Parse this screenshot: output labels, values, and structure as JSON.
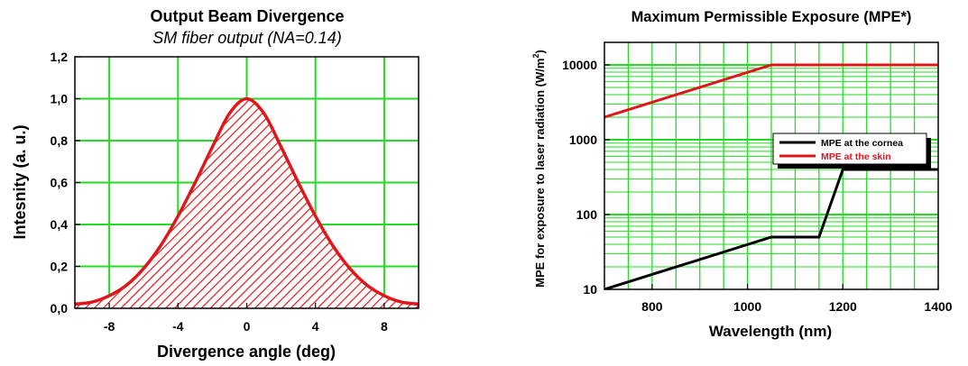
{
  "chart_data": [
    {
      "type": "area",
      "title": "Output Beam Divergence",
      "subtitle": "SM fiber output (NA=0.14)",
      "xlabel": "Divergence angle (deg)",
      "ylabel": "Intesnity (a. u.)",
      "xlim": [
        -10,
        10
      ],
      "ylim": [
        0,
        1.2
      ],
      "x_ticks": [
        "-8",
        "-4",
        "0",
        "4",
        "8"
      ],
      "x_tick_values": [
        -8,
        -4,
        0,
        4,
        8
      ],
      "y_ticks": [
        "0,0",
        "0,2",
        "0,4",
        "0,6",
        "0,8",
        "1,0",
        "1,2"
      ],
      "y_tick_values": [
        0,
        0.2,
        0.4,
        0.6,
        0.8,
        1.0,
        1.2
      ],
      "grid": true,
      "fill": "hatched",
      "series": [
        {
          "x": [
            -10,
            -9,
            -8,
            -7,
            -6,
            -5,
            -4,
            -3,
            -2,
            -1,
            0,
            1,
            2,
            3,
            4,
            5,
            6,
            7,
            8,
            9,
            10
          ],
          "values": [
            0.02,
            0.03,
            0.06,
            0.11,
            0.19,
            0.3,
            0.44,
            0.6,
            0.77,
            0.93,
            1.0,
            0.93,
            0.77,
            0.6,
            0.44,
            0.3,
            0.19,
            0.11,
            0.06,
            0.03,
            0.02
          ],
          "color": "#e0161b"
        }
      ],
      "colors": {
        "grid": "#22dd22",
        "line": "#e0161b",
        "hatch": "#e0161b"
      }
    },
    {
      "type": "line",
      "title": "Maximum Permissible Exposure (MPE*)",
      "xlabel": "Wavelength (nm)",
      "ylabel": "MPE for exposure to laser radiation (W/m",
      "ylabel_sup": "2",
      "ylabel_close": ")",
      "xlim": [
        700,
        1400
      ],
      "ylim": [
        10,
        20000
      ],
      "y_scale": "log",
      "x_ticks": [
        "800",
        "1000",
        "1200",
        "1400"
      ],
      "x_tick_values": [
        800,
        1000,
        1200,
        1400
      ],
      "y_ticks": [
        "10",
        "100",
        "1000",
        "10000"
      ],
      "y_tick_values": [
        10,
        100,
        1000,
        10000
      ],
      "grid": true,
      "legend_position": "right",
      "series": [
        {
          "name": "MPE at the cornea",
          "x": [
            700,
            1050,
            1150,
            1200,
            1400
          ],
          "values": [
            10,
            50,
            50,
            400,
            400
          ],
          "color": "#000000"
        },
        {
          "name": "MPE at the skin",
          "x": [
            700,
            1050,
            1400
          ],
          "values": [
            2000,
            10000,
            10000
          ],
          "color": "#e0161b"
        }
      ],
      "colors": {
        "grid": "#22dd22"
      }
    }
  ]
}
